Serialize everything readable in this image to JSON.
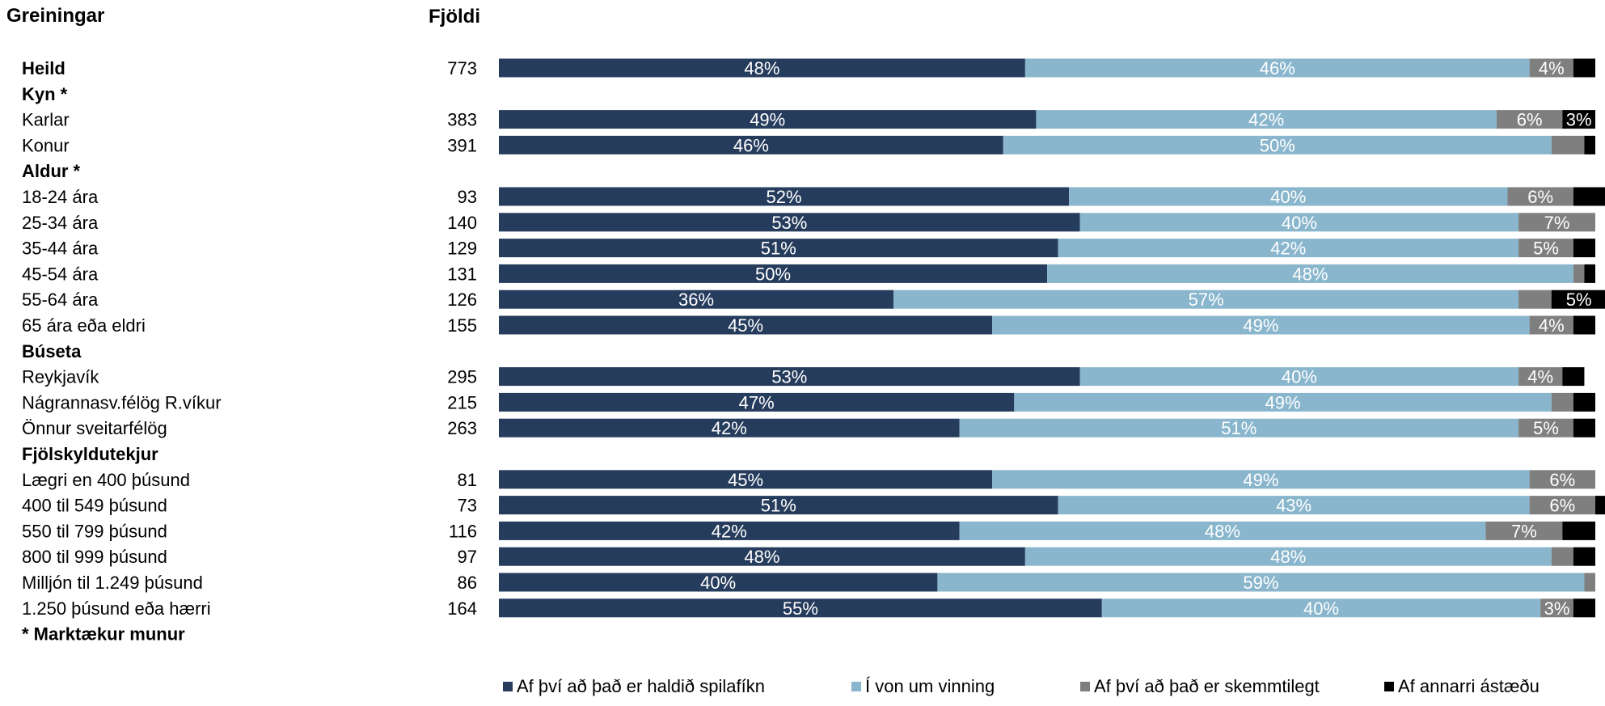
{
  "header": {
    "title": "Greiningar",
    "count_header": "Fjöldi"
  },
  "colors": {
    "series": [
      "#263c5c",
      "#89b6cd",
      "#7f7f7f",
      "#000000"
    ],
    "label_text": "#ffffff"
  },
  "chart_data": {
    "type": "bar",
    "orientation": "horizontal",
    "stacked": true,
    "normalized": "percent",
    "xlim": [
      0,
      100
    ],
    "series_names": [
      "Af því að það er haldið spilafíkn",
      "Í von um vinning",
      "Af því að það er skemmtilegt",
      "Af annarri ástæðu"
    ],
    "legend_position": "bottom",
    "rows": [
      {
        "label": "Heild",
        "kind": "group",
        "n": "773",
        "values": [
          48,
          46,
          4,
          2
        ],
        "labels": [
          "48%",
          "46%",
          "4%",
          ""
        ]
      },
      {
        "label": "Kyn *",
        "kind": "group"
      },
      {
        "label": "Karlar",
        "kind": "item",
        "n": "383",
        "values": [
          49,
          42,
          6,
          3
        ],
        "labels": [
          "49%",
          "42%",
          "6%",
          "3%"
        ]
      },
      {
        "label": "Konur",
        "kind": "item",
        "n": "391",
        "values": [
          46,
          50,
          3,
          1
        ],
        "labels": [
          "46%",
          "50%",
          "",
          ""
        ]
      },
      {
        "label": "Aldur *",
        "kind": "group"
      },
      {
        "label": "18-24 ára",
        "kind": "item",
        "n": "93",
        "values": [
          52,
          40,
          6,
          3
        ],
        "labels": [
          "52%",
          "40%",
          "6%",
          ""
        ]
      },
      {
        "label": "25-34 ára",
        "kind": "item",
        "n": "140",
        "values": [
          53,
          40,
          7,
          0
        ],
        "labels": [
          "53%",
          "40%",
          "7%",
          ""
        ]
      },
      {
        "label": "35-44 ára",
        "kind": "item",
        "n": "129",
        "values": [
          51,
          42,
          5,
          2
        ],
        "labels": [
          "51%",
          "42%",
          "5%",
          ""
        ]
      },
      {
        "label": "45-54 ára",
        "kind": "item",
        "n": "131",
        "values": [
          50,
          48,
          1,
          1
        ],
        "labels": [
          "50%",
          "48%",
          "",
          ""
        ]
      },
      {
        "label": "55-64 ára",
        "kind": "item",
        "n": "126",
        "values": [
          36,
          57,
          3,
          5
        ],
        "labels": [
          "36%",
          "57%",
          "",
          "5%"
        ]
      },
      {
        "label": "65 ára eða eldri",
        "kind": "item",
        "n": "155",
        "values": [
          45,
          49,
          4,
          2
        ],
        "labels": [
          "45%",
          "49%",
          "4%",
          ""
        ]
      },
      {
        "label": "Búseta",
        "kind": "group"
      },
      {
        "label": "Reykjavík",
        "kind": "item",
        "n": "295",
        "values": [
          53,
          40,
          4,
          2
        ],
        "labels": [
          "53%",
          "40%",
          "4%",
          ""
        ]
      },
      {
        "label": "Nágrannasv.félög R.víkur",
        "kind": "item",
        "n": "215",
        "values": [
          47,
          49,
          2,
          2
        ],
        "labels": [
          "47%",
          "49%",
          "",
          ""
        ]
      },
      {
        "label": "Önnur sveitarfélög",
        "kind": "item",
        "n": "263",
        "values": [
          42,
          51,
          5,
          2
        ],
        "labels": [
          "42%",
          "51%",
          "5%",
          ""
        ]
      },
      {
        "label": "Fjölskyldutekjur",
        "kind": "group"
      },
      {
        "label": "Lægri en 400 þúsund",
        "kind": "item",
        "n": "81",
        "values": [
          45,
          49,
          6,
          0
        ],
        "labels": [
          "45%",
          "49%",
          "6%",
          ""
        ]
      },
      {
        "label": "400 til 549 þúsund",
        "kind": "item",
        "n": "73",
        "values": [
          51,
          43,
          6,
          1
        ],
        "labels": [
          "51%",
          "43%",
          "6%",
          ""
        ]
      },
      {
        "label": "550 til 799 þúsund",
        "kind": "item",
        "n": "116",
        "values": [
          42,
          48,
          7,
          3
        ],
        "labels": [
          "42%",
          "48%",
          "7%",
          ""
        ]
      },
      {
        "label": "800 til 999 þúsund",
        "kind": "item",
        "n": "97",
        "values": [
          48,
          48,
          2,
          2
        ],
        "labels": [
          "48%",
          "48%",
          "",
          ""
        ]
      },
      {
        "label": "Milljón til 1.249 þúsund",
        "kind": "item",
        "n": "86",
        "values": [
          40,
          59,
          1,
          0
        ],
        "labels": [
          "40%",
          "59%",
          "",
          ""
        ]
      },
      {
        "label": "1.250 þúsund eða hærri",
        "kind": "item",
        "n": "164",
        "values": [
          55,
          40,
          3,
          2
        ],
        "labels": [
          "55%",
          "40%",
          "3%",
          ""
        ]
      },
      {
        "label": "* Marktækur munur",
        "kind": "group"
      }
    ]
  }
}
